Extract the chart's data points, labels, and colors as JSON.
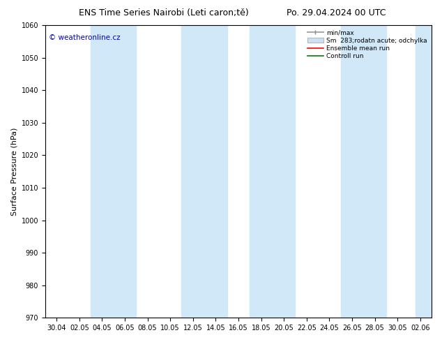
{
  "title_left": "ENS Time Series Nairobi (Leti caron;tě)",
  "title_right": "Po. 29.04.2024 00 UTC",
  "ylabel": "Surface Pressure (hPa)",
  "ylim": [
    970,
    1060
  ],
  "yticks": [
    970,
    980,
    990,
    1000,
    1010,
    1020,
    1030,
    1040,
    1050,
    1060
  ],
  "xtick_labels": [
    "30.04",
    "02.05",
    "04.05",
    "06.05",
    "08.05",
    "10.05",
    "12.05",
    "14.05",
    "16.05",
    "18.05",
    "20.05",
    "22.05",
    "24.05",
    "26.05",
    "28.05",
    "30.05",
    "02.06"
  ],
  "watermark": "© weatheronline.cz",
  "legend_entries": [
    "min/max",
    "Sm  283;rodatn acute; odchylka",
    "Ensemble mean run",
    "Controll run"
  ],
  "band_color": "#d0e8f8",
  "bg_color": "#ffffff",
  "mean_line_color": "#ff0000",
  "control_line_color": "#008000",
  "band_indices": [
    2,
    3,
    6,
    7,
    8,
    9,
    11,
    12,
    13,
    14,
    16
  ],
  "title_fontsize": 9,
  "tick_fontsize": 7,
  "ylabel_fontsize": 8
}
